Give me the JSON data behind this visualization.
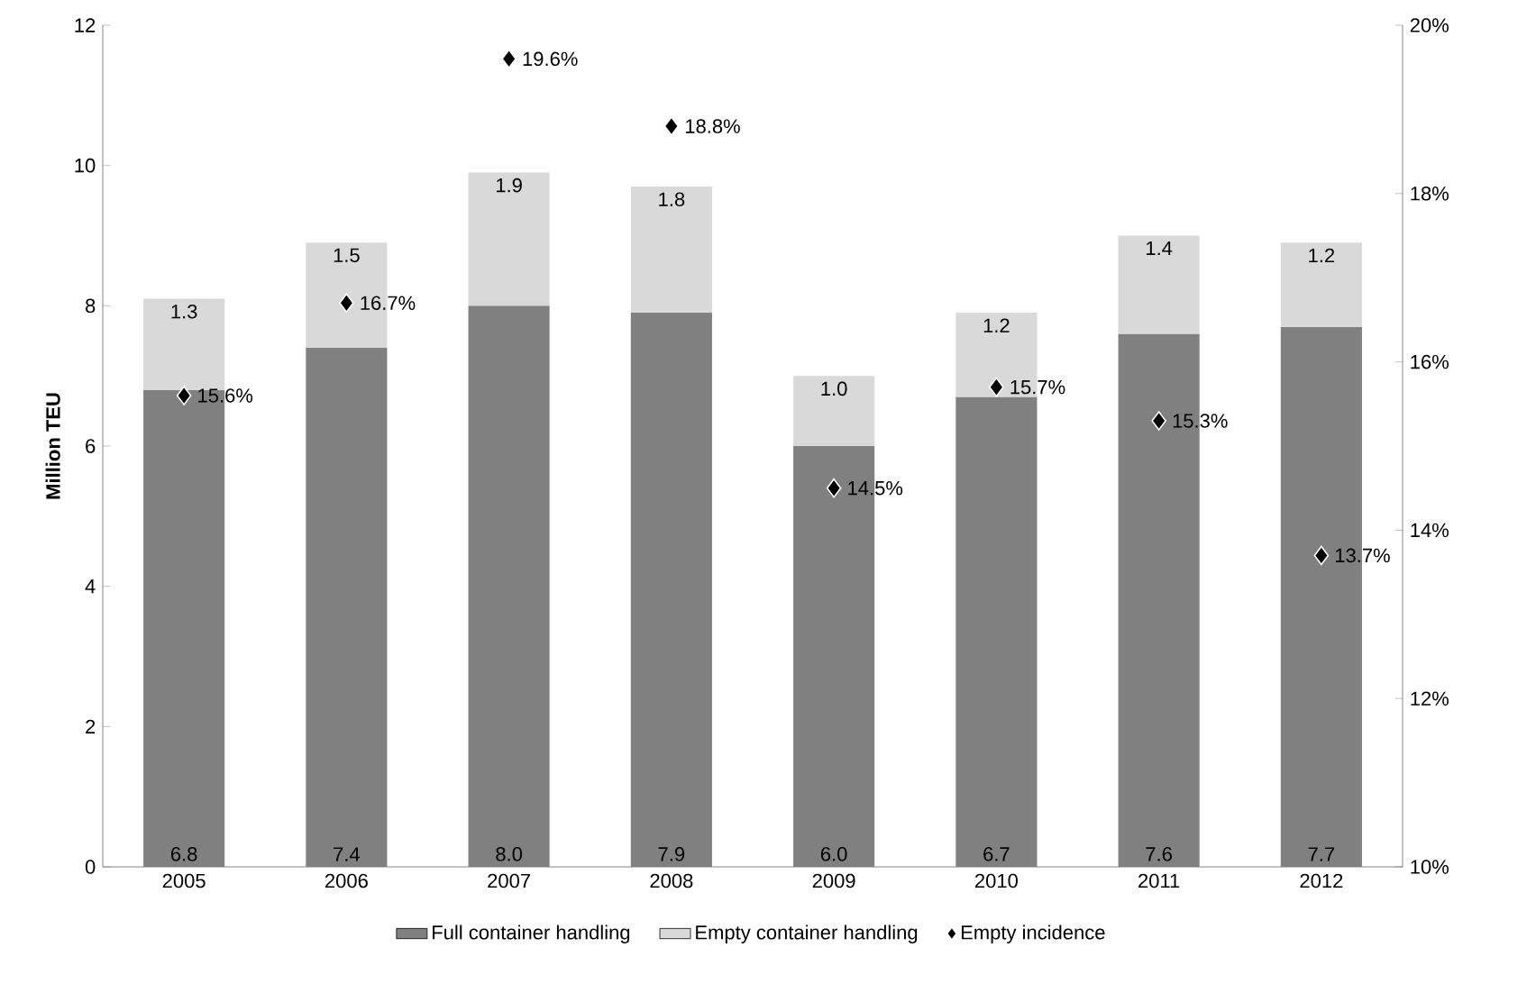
{
  "chart_data": {
    "type": "bar",
    "stacked": true,
    "categories": [
      "2005",
      "2006",
      "2007",
      "2008",
      "2009",
      "2010",
      "2011",
      "2012"
    ],
    "ylabel": "Million TEU",
    "ylim": [
      0,
      12
    ],
    "yticks": [
      0,
      2,
      4,
      6,
      8,
      10,
      12
    ],
    "y2lim": [
      10,
      20
    ],
    "y2ticks": [
      {
        "value": 10,
        "label": "10%"
      },
      {
        "value": 12,
        "label": "12%"
      },
      {
        "value": 14,
        "label": "14%"
      },
      {
        "value": 16,
        "label": "16%"
      },
      {
        "value": 18,
        "label": "18%"
      },
      {
        "value": 20,
        "label": "20%"
      }
    ],
    "series": [
      {
        "name": "Full container handling",
        "color": "#808080",
        "values": [
          6.8,
          7.4,
          8.0,
          7.9,
          6.0,
          6.7,
          7.6,
          7.7
        ],
        "value_labels": [
          "6.8",
          "7.4",
          "8.0",
          "7.9",
          "6.0",
          "6.7",
          "7.6",
          "7.7"
        ]
      },
      {
        "name": "Empty container handling",
        "color": "#d9d9d9",
        "values": [
          1.3,
          1.5,
          1.9,
          1.8,
          1.0,
          1.2,
          1.4,
          1.2
        ],
        "value_labels": [
          "1.3",
          "1.5",
          "1.9",
          "1.8",
          "1.0",
          "1.2",
          "1.4",
          "1.2"
        ]
      },
      {
        "name": "Empty incidence",
        "type": "scatter",
        "axis": "y2",
        "color": "#000000",
        "marker": "diamond",
        "values": [
          15.6,
          16.7,
          19.6,
          18.8,
          14.5,
          15.7,
          15.3,
          13.7
        ],
        "value_labels": [
          "15.6%",
          "16.7%",
          "19.6%",
          "18.8%",
          "14.5%",
          "15.7%",
          "15.3%",
          "13.7%"
        ]
      }
    ],
    "legend": "bottom",
    "grid": false
  }
}
